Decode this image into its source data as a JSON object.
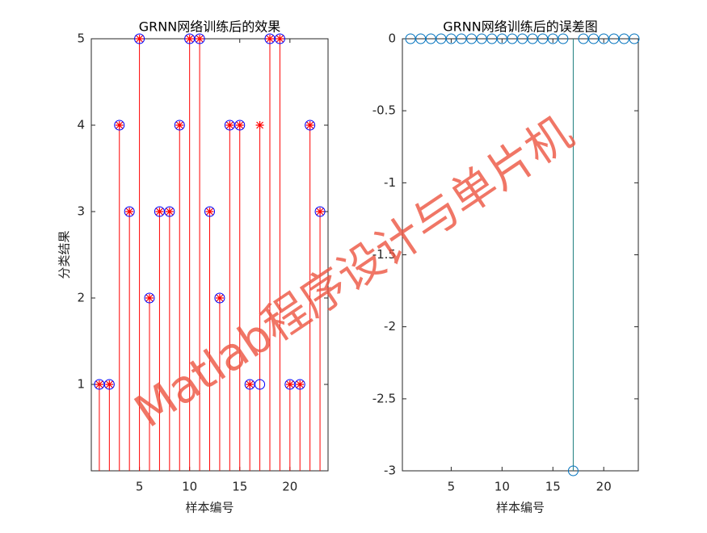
{
  "watermark": "Matlab程序设计与单片机",
  "chart_data": [
    {
      "type": "stem",
      "title": "GRNN网络训练后的效果",
      "xlabel": "样本编号",
      "ylabel": "分类结果",
      "x": [
        1,
        2,
        3,
        4,
        5,
        6,
        7,
        8,
        9,
        10,
        11,
        12,
        13,
        14,
        15,
        16,
        17,
        18,
        19,
        20,
        21,
        22,
        23
      ],
      "series": [
        {
          "color": "#ff0000",
          "marker": "*",
          "stem": true,
          "values": [
            1,
            1,
            4,
            3,
            5,
            2,
            3,
            3,
            4,
            5,
            5,
            3,
            2,
            4,
            4,
            1,
            4,
            5,
            5,
            1,
            1,
            4,
            3
          ]
        },
        {
          "color": "#0000ff",
          "marker": "o",
          "stem": false,
          "values": [
            1,
            1,
            4,
            3,
            5,
            2,
            3,
            3,
            4,
            5,
            5,
            3,
            2,
            4,
            4,
            1,
            1,
            5,
            5,
            1,
            1,
            4,
            3
          ]
        }
      ],
      "xlim": [
        0.2,
        23.8
      ],
      "xticks": [
        5,
        10,
        15,
        20
      ],
      "ylim": [
        0,
        5
      ],
      "yticks": [
        1,
        2,
        3,
        4,
        5
      ]
    },
    {
      "type": "stem",
      "title": "GRNN网络训练后的误差图",
      "xlabel": "样本编号",
      "x": [
        1,
        2,
        3,
        4,
        5,
        6,
        7,
        8,
        9,
        10,
        11,
        12,
        13,
        14,
        15,
        16,
        17,
        18,
        19,
        20,
        21,
        22,
        23
      ],
      "series": [
        {
          "color": "#0072bd",
          "stem_color": "#1f8080",
          "marker": "o",
          "stem": true,
          "values": [
            0,
            0,
            0,
            0,
            0,
            0,
            0,
            0,
            0,
            0,
            0,
            0,
            0,
            0,
            0,
            0,
            -3,
            0,
            0,
            0,
            0,
            0,
            0
          ]
        }
      ],
      "xlim": [
        0.2,
        23.4
      ],
      "xticks": [
        5,
        10,
        15,
        20
      ],
      "ylim": [
        -3,
        0
      ],
      "yticks": [
        -3,
        -2.5,
        -2,
        -1.5,
        -1,
        -0.5,
        0
      ]
    }
  ]
}
